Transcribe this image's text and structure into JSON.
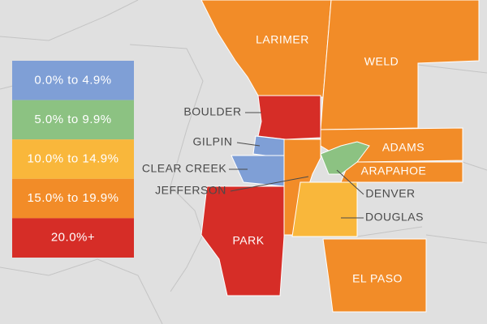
{
  "legend": {
    "items": [
      {
        "label": "0.0% to 4.9%",
        "color": "#7f9fd6"
      },
      {
        "label": "5.0% to 9.9%",
        "color": "#8cc282"
      },
      {
        "label": "10.0% to 14.9%",
        "color": "#f9b73b"
      },
      {
        "label": "15.0% to 19.9%",
        "color": "#f28c28"
      },
      {
        "label": "20.0%+",
        "color": "#d62d27"
      }
    ]
  },
  "counties": [
    {
      "name": "LARIMER",
      "color": "#f28c28"
    },
    {
      "name": "WELD",
      "color": "#f28c28"
    },
    {
      "name": "BOULDER",
      "color": "#d62d27"
    },
    {
      "name": "GILPIN",
      "color": "#7f9fd6"
    },
    {
      "name": "CLEAR CREEK",
      "color": "#7f9fd6"
    },
    {
      "name": "JEFFERSON",
      "color": "#f28c28"
    },
    {
      "name": "PARK",
      "color": "#d62d27"
    },
    {
      "name": "ADAMS",
      "color": "#f28c28"
    },
    {
      "name": "ARAPAHOE",
      "color": "#f28c28"
    },
    {
      "name": "DENVER",
      "color": "#8cc282"
    },
    {
      "name": "DOUGLAS",
      "color": "#f9b73b"
    },
    {
      "name": "EL PASO",
      "color": "#f28c28"
    }
  ]
}
